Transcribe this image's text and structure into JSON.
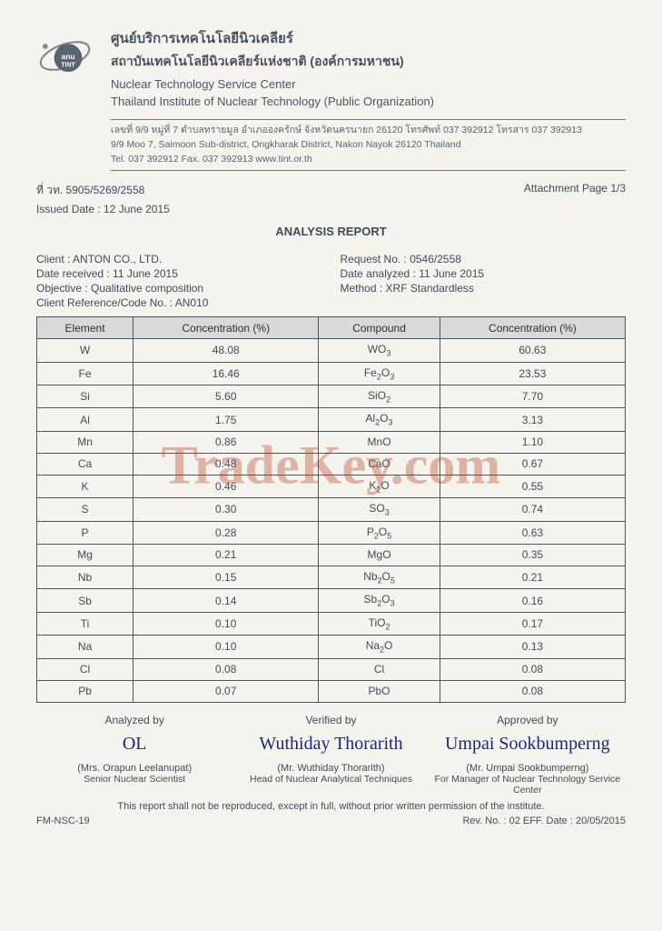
{
  "org": {
    "thai1": "ศูนย์บริการเทคโนโลยีนิวเคลียร์",
    "thai2": "สถาบันเทคโนโลยีนิวเคลียร์แห่งชาติ (องค์การมหาชน)",
    "en1": "Nuclear Technology Service Center",
    "en2": "Thailand Institute of Nuclear Technology (Public Organization)",
    "addr1": "เลขที่ 9/9 หมู่ที่ 7 ตำบลทรายมูล อำเภอองครักษ์ จังหวัดนครนายก 26120 โทรศัพท์ 037 392912 โทรสาร 037 392913",
    "addr2": "9/9 Moo 7, Saimoon Sub-district, Ongkharak District, Nakon Nayok 26120 Thailand",
    "addr3": "Tel. 037 392912 Fax. 037 392913     www.tint.or.th"
  },
  "meta": {
    "ref": "ที่ วท. 5905/5269/2558",
    "attachment": "Attachment Page 1/3",
    "issued": "Issued Date :  12 June 2015"
  },
  "report_title": "ANALYSIS REPORT",
  "info": {
    "client": "Client :  ANTON CO., LTD.",
    "date_received": "Date received :  11 June 2015",
    "objective": "Objective :  Qualitative composition",
    "client_ref": "Client Reference/Code No. : AN010",
    "request_no": "Request No. :  0546/2558",
    "date_analyzed": "Date analyzed : 11 June 2015",
    "method": "Method :  XRF Standardless"
  },
  "table": {
    "headers": [
      "Element",
      "Concentration (%)",
      "Compound",
      "Concentration (%)"
    ],
    "rows": [
      [
        "W",
        "48.08",
        "WO<sub>3</sub>",
        "60.63"
      ],
      [
        "Fe",
        "16.46",
        "Fe<sub>2</sub>O<sub>3</sub>",
        "23.53"
      ],
      [
        "Si",
        "5.60",
        "SiO<sub>2</sub>",
        "7.70"
      ],
      [
        "Al",
        "1.75",
        "Al<sub>2</sub>O<sub>3</sub>",
        "3.13"
      ],
      [
        "Mn",
        "0.86",
        "MnO",
        "1.10"
      ],
      [
        "Ca",
        "0.48",
        "CaO",
        "0.67"
      ],
      [
        "K",
        "0.46",
        "K<sub>2</sub>O",
        "0.55"
      ],
      [
        "S",
        "0.30",
        "SO<sub>3</sub>",
        "0.74"
      ],
      [
        "P",
        "0.28",
        "P<sub>2</sub>O<sub>5</sub>",
        "0.63"
      ],
      [
        "Mg",
        "0.21",
        "MgO",
        "0.35"
      ],
      [
        "Nb",
        "0.15",
        "Nb<sub>2</sub>O<sub>5</sub>",
        "0.21"
      ],
      [
        "Sb",
        "0.14",
        "Sb<sub>2</sub>O<sub>3</sub>",
        "0.16"
      ],
      [
        "Ti",
        "0.10",
        "TiO<sub>2</sub>",
        "0.17"
      ],
      [
        "Na",
        "0.10",
        "Na<sub>2</sub>O",
        "0.13"
      ],
      [
        "Cl",
        "0.08",
        "Cl",
        "0.08"
      ],
      [
        "Pb",
        "0.07",
        "PbO",
        "0.08"
      ]
    ]
  },
  "sign": {
    "c1_label": "Analyzed by",
    "c1_sign": "OL",
    "c1_name": "(Mrs. Orapun Leelanupat)",
    "c1_title": "Senior Nuclear Scientist",
    "c2_label": "Verified by",
    "c2_sign": "Wuthiday Thorarith",
    "c2_name": "(Mr. Wuthiday Thorarith)",
    "c2_title": "Head of Nuclear Analytical Techniques",
    "c3_label": "Approved by",
    "c3_sign": "Umpai Sookbumperng",
    "c3_name": "(Mr. Umpai Sookbumperng)",
    "c3_title": "For Manager of Nuclear Technology Service Center"
  },
  "footer": {
    "note": "This report shall not be reproduced, except in full, without prior written permission of the institute.",
    "left": "FM-NSC-19",
    "right": "Rev. No. : 02 EFF.  Date :  20/05/2015"
  },
  "watermark": "TradeKey.com",
  "colors": {
    "header_bg": "#d7d9db",
    "border": "#555555",
    "text": "#404b5a",
    "sign": "#1a2a7a",
    "wm": "rgba(180,60,30,0.35)",
    "page_bg": "#f5f3ed"
  }
}
